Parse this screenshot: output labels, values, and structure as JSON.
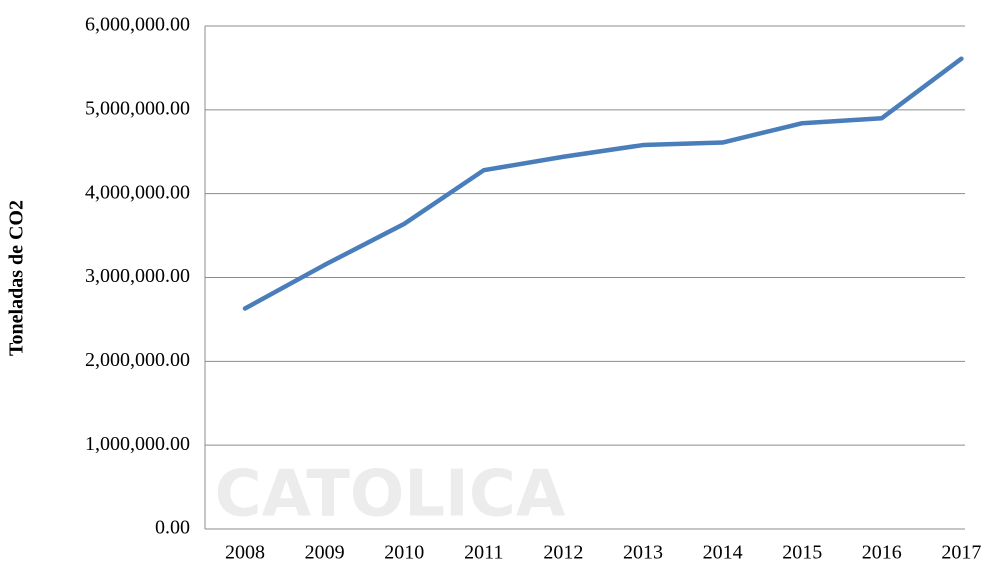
{
  "chart_data": {
    "type": "line",
    "y_label": "Toneladas de CO2",
    "watermark": "CATOLICA",
    "categories": [
      "2008",
      "2009",
      "2010",
      "2011",
      "2012",
      "2013",
      "2014",
      "2015",
      "2016",
      "2017"
    ],
    "series": [
      {
        "name": "Toneladas de CO2",
        "color": "#4a7ebb",
        "values": [
          2630000,
          3150000,
          3640000,
          4280000,
          4440000,
          4580000,
          4610000,
          4840000,
          4900000,
          5610000
        ]
      }
    ],
    "ylim": [
      0,
      6000000
    ],
    "yticks": [
      {
        "value": 0,
        "label": "0.00"
      },
      {
        "value": 1000000,
        "label": "1,000,000.00"
      },
      {
        "value": 2000000,
        "label": "2,000,000.00"
      },
      {
        "value": 3000000,
        "label": "3,000,000.00"
      },
      {
        "value": 4000000,
        "label": "4,000,000.00"
      },
      {
        "value": 5000000,
        "label": "5,000,000.00"
      },
      {
        "value": 6000000,
        "label": "6,000,000.00"
      }
    ],
    "grid": true
  }
}
